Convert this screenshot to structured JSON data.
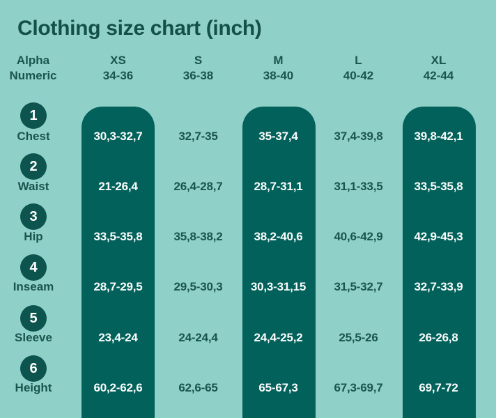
{
  "title": "Clothing size chart (inch)",
  "colors": {
    "background": "#8FD1C9",
    "band": "#02615B",
    "circle": "#0E544E",
    "text_dark": "#1A544E",
    "text_light": "#FFFFFF"
  },
  "header": {
    "label_col": [
      "Alpha",
      "Numeric"
    ],
    "sizes": [
      {
        "alpha": "XS",
        "numeric": "34-36",
        "highlighted": true
      },
      {
        "alpha": "S",
        "numeric": "36-38",
        "highlighted": false
      },
      {
        "alpha": "M",
        "numeric": "38-40",
        "highlighted": true
      },
      {
        "alpha": "L",
        "numeric": "40-42",
        "highlighted": false
      },
      {
        "alpha": "XL",
        "numeric": "42-44",
        "highlighted": true
      }
    ]
  },
  "rows": [
    {
      "num": "1",
      "label": "Chest",
      "values": [
        "30,3-32,7",
        "32,7-35",
        "35-37,4",
        "37,4-39,8",
        "39,8-42,1"
      ]
    },
    {
      "num": "2",
      "label": "Waist",
      "values": [
        "21-26,4",
        "26,4-28,7",
        "28,7-31,1",
        "31,1-33,5",
        "33,5-35,8"
      ]
    },
    {
      "num": "3",
      "label": "Hip",
      "values": [
        "33,5-35,8",
        "35,8-38,2",
        "38,2-40,6",
        "40,6-42,9",
        "42,9-45,3"
      ]
    },
    {
      "num": "4",
      "label": "Inseam",
      "values": [
        "28,7-29,5",
        "29,5-30,3",
        "30,3-31,15",
        "31,5-32,7",
        "32,7-33,9"
      ]
    },
    {
      "num": "5",
      "label": "Sleeve",
      "values": [
        "23,4-24",
        "24-24,4",
        "24,4-25,2",
        "25,5-26",
        "26-26,8"
      ]
    },
    {
      "num": "6",
      "label": "Height",
      "values": [
        "60,2-62,6",
        "62,6-65",
        "65-67,3",
        "67,3-69,7",
        "69,7-72"
      ]
    }
  ],
  "chart_data": {
    "type": "table",
    "title": "Clothing size chart (inch)",
    "unit": "inch",
    "column_headers": [
      "Alpha Numeric",
      "XS 34-36",
      "S 36-38",
      "M 38-40",
      "L 40-42",
      "XL 42-44"
    ],
    "highlighted_columns": [
      "XS",
      "M",
      "XL"
    ],
    "row_headers": [
      "1 Chest",
      "2 Waist",
      "3 Hip",
      "4 Inseam",
      "5 Sleeve",
      "6 Height"
    ],
    "rows": [
      [
        "30,3-32,7",
        "32,7-35",
        "35-37,4",
        "37,4-39,8",
        "39,8-42,1"
      ],
      [
        "21-26,4",
        "26,4-28,7",
        "28,7-31,1",
        "31,1-33,5",
        "33,5-35,8"
      ],
      [
        "33,5-35,8",
        "35,8-38,2",
        "38,2-40,6",
        "40,6-42,9",
        "42,9-45,3"
      ],
      [
        "28,7-29,5",
        "29,5-30,3",
        "30,3-31,15",
        "31,5-32,7",
        "32,7-33,9"
      ],
      [
        "23,4-24",
        "24-24,4",
        "24,4-25,2",
        "25,5-26",
        "26-26,8"
      ],
      [
        "60,2-62,6",
        "62,6-65",
        "65-67,3",
        "67,3-69,7",
        "69,7-72"
      ]
    ]
  }
}
